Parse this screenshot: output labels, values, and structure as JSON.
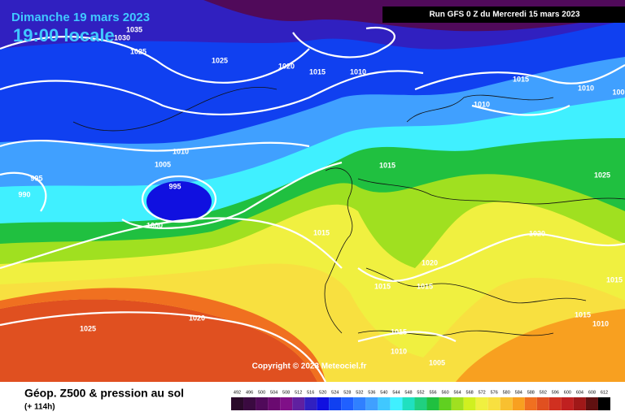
{
  "header": {
    "date": "Dimanche 19 mars 2023",
    "time": "19:00 locale",
    "run": "Run GFS 0 Z du Mercredi 15 mars 2023"
  },
  "map": {
    "isobar_labels": [
      "1035",
      "1030",
      "1025",
      "1025",
      "1020",
      "1015",
      "1010",
      "1015",
      "1010",
      "100",
      "1010",
      "1010",
      "1005",
      "995",
      "995",
      "990",
      "1000",
      "1015",
      "1025",
      "1015",
      "1020",
      "1020",
      "1015",
      "1015",
      "1015",
      "1020",
      "1025",
      "1015",
      "1010",
      "1015",
      "1010",
      "1005"
    ],
    "copyright": "Copyright © 2023 Meteociel.fr"
  },
  "footer": {
    "title": "Géop. Z500 & pression au sol",
    "lead": "(+ 114h)"
  },
  "scale": {
    "labels": [
      492,
      496,
      500,
      504,
      508,
      512,
      516,
      520,
      524,
      528,
      532,
      536,
      540,
      544,
      548,
      552,
      556,
      560,
      564,
      568,
      572,
      576,
      580,
      584,
      588,
      592,
      596,
      600,
      604,
      608,
      612
    ],
    "colors": [
      "#2a0a2a",
      "#3a0a40",
      "#500a5a",
      "#6a0a70",
      "#801088",
      "#6020a0",
      "#3020c0",
      "#1010e0",
      "#1040f0",
      "#2060ff",
      "#3080ff",
      "#40a0ff",
      "#40c8ff",
      "#40f0ff",
      "#20e0c0",
      "#20d080",
      "#20c040",
      "#60d020",
      "#a0e020",
      "#d0f020",
      "#f0f040",
      "#f8e040",
      "#f8c030",
      "#f8a020",
      "#f07020",
      "#e05020",
      "#d03020",
      "#c02020",
      "#a01818",
      "#601010",
      "#000000"
    ]
  }
}
